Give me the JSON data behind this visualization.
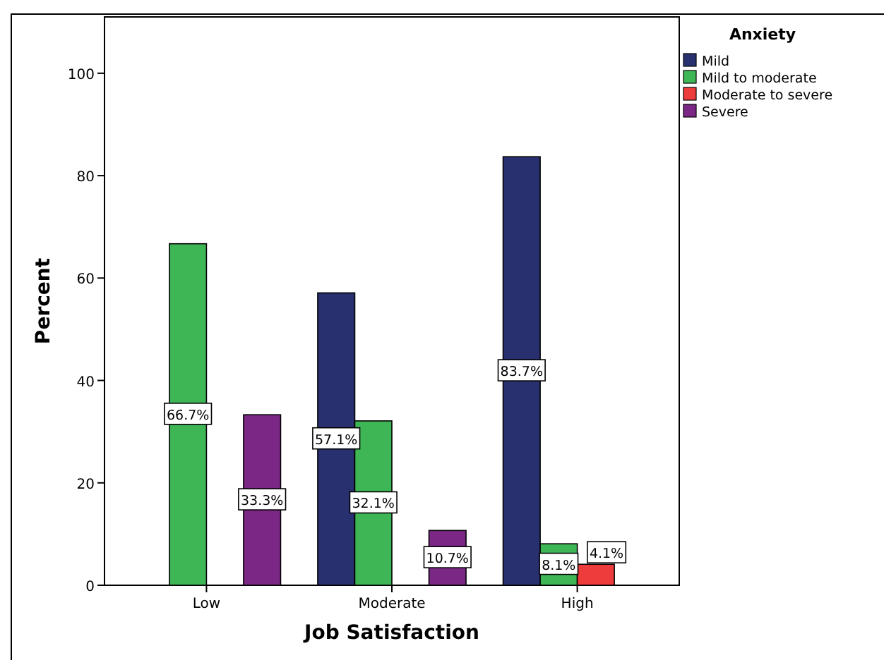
{
  "chart_data": {
    "type": "bar",
    "xlabel": "Job Satisfaction",
    "ylabel": "Percent",
    "legend_title": "Anxiety",
    "categories": [
      "Low",
      "Moderate",
      "High"
    ],
    "series": [
      {
        "name": "Mild",
        "color": "#29306f",
        "values": [
          null,
          57.1,
          83.7
        ],
        "value_labels": [
          null,
          "57.1%",
          "83.7%"
        ]
      },
      {
        "name": "Mild to moderate",
        "color": "#3fb656",
        "values": [
          66.7,
          32.1,
          8.1
        ],
        "value_labels": [
          "66.7%",
          "32.1%",
          "8.1%"
        ]
      },
      {
        "name": "Moderate to severe",
        "color": "#ee3b3b",
        "values": [
          null,
          null,
          4.1
        ],
        "value_labels": [
          null,
          null,
          "4.1%"
        ]
      },
      {
        "name": "Severe",
        "color": "#7b2785",
        "values": [
          33.3,
          10.7,
          null
        ],
        "value_labels": [
          "33.3%",
          "10.7%",
          null
        ]
      }
    ],
    "ylim": [
      0,
      111
    ],
    "yticks": [
      0,
      20,
      40,
      60,
      80,
      100
    ],
    "grid": false,
    "legend": "top right"
  }
}
